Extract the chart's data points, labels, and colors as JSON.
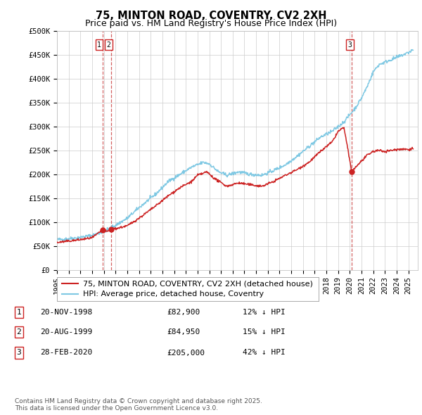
{
  "title": "75, MINTON ROAD, COVENTRY, CV2 2XH",
  "subtitle": "Price paid vs. HM Land Registry's House Price Index (HPI)",
  "ylim": [
    0,
    500000
  ],
  "yticks": [
    0,
    50000,
    100000,
    150000,
    200000,
    250000,
    300000,
    350000,
    400000,
    450000,
    500000
  ],
  "ytick_labels": [
    "£0",
    "£50K",
    "£100K",
    "£150K",
    "£200K",
    "£250K",
    "£300K",
    "£350K",
    "£400K",
    "£450K",
    "£500K"
  ],
  "xlim_start": 1995.0,
  "xlim_end": 2025.8,
  "hpi_color": "#7ec8e3",
  "price_color": "#cc2222",
  "dashed_color": "#cc4444",
  "background_color": "#ffffff",
  "grid_color": "#cccccc",
  "transaction_dates": [
    1998.896,
    1999.639,
    2020.163
  ],
  "transaction_prices": [
    82900,
    84950,
    205000
  ],
  "transaction_labels": [
    "1",
    "2",
    "3"
  ],
  "legend_label_price": "75, MINTON ROAD, COVENTRY, CV2 2XH (detached house)",
  "legend_label_hpi": "HPI: Average price, detached house, Coventry",
  "table_rows": [
    [
      "1",
      "20-NOV-1998",
      "£82,900",
      "12% ↓ HPI"
    ],
    [
      "2",
      "20-AUG-1999",
      "£84,950",
      "15% ↓ HPI"
    ],
    [
      "3",
      "28-FEB-2020",
      "£205,000",
      "42% ↓ HPI"
    ]
  ],
  "footnote": "Contains HM Land Registry data © Crown copyright and database right 2025.\nThis data is licensed under the Open Government Licence v3.0.",
  "title_fontsize": 10.5,
  "subtitle_fontsize": 9,
  "tick_fontsize": 7.5,
  "legend_fontsize": 8,
  "table_fontsize": 8,
  "footnote_fontsize": 6.5
}
